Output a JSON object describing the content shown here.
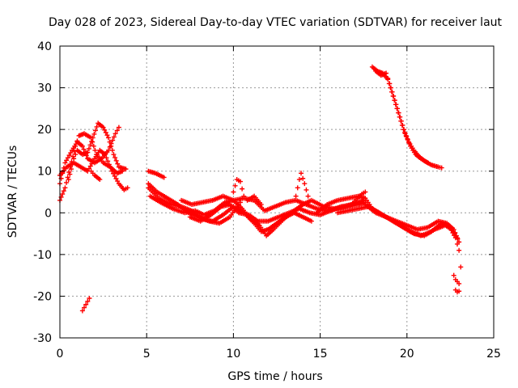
{
  "chart_data": {
    "type": "scatter",
    "title": "Day 028 of 2023, Sidereal Day-to-day VTEC variation (SDTVAR) for receiver laut",
    "xlabel": "GPS time / hours",
    "ylabel": "SDTVAR / TECUs",
    "xlim": [
      0,
      25
    ],
    "ylim": [
      -30,
      40
    ],
    "xticks": [
      "0",
      "5",
      "10",
      "15",
      "20",
      "25"
    ],
    "yticks": [
      "-30",
      "-20",
      "-10",
      "0",
      "10",
      "20",
      "30",
      "40"
    ],
    "grid": true,
    "marker": "+",
    "series": [
      {
        "name": "SDTVAR",
        "color": "#ff0000",
        "tracks": [
          [
            [
              0,
              3
            ],
            [
              0.3,
              6
            ],
            [
              0.6,
              11
            ],
            [
              0.9,
              16
            ],
            [
              1.1,
              18.5
            ],
            [
              1.4,
              19
            ],
            [
              1.8,
              18
            ],
            [
              2.1,
              14
            ],
            [
              2.5,
              12
            ],
            [
              2.9,
              11
            ],
            [
              3.3,
              9.5
            ],
            [
              3.6,
              10
            ]
          ],
          [
            [
              0,
              7
            ],
            [
              0.3,
              12
            ],
            [
              0.7,
              15
            ],
            [
              1.0,
              17
            ],
            [
              1.3,
              16
            ],
            [
              1.6,
              13
            ],
            [
              2.0,
              12
            ],
            [
              2.4,
              13
            ],
            [
              2.8,
              15
            ],
            [
              3.2,
              19
            ],
            [
              3.4,
              20.5
            ]
          ],
          [
            [
              0,
              9
            ],
            [
              0.4,
              11
            ],
            [
              0.8,
              12
            ],
            [
              1.2,
              11
            ],
            [
              1.6,
              10
            ],
            [
              2.0,
              13
            ],
            [
              2.3,
              15
            ],
            [
              2.6,
              14
            ],
            [
              3.0,
              10
            ],
            [
              3.4,
              7
            ],
            [
              3.7,
              5.5
            ],
            [
              3.9,
              6
            ]
          ],
          [
            [
              0.5,
              8
            ],
            [
              0.8,
              13
            ],
            [
              1.0,
              15
            ],
            [
              1.3,
              14
            ],
            [
              1.6,
              14.5
            ],
            [
              1.9,
              18
            ],
            [
              2.2,
              21.5
            ],
            [
              2.5,
              20.5
            ],
            [
              2.8,
              18
            ],
            [
              3.1,
              14
            ],
            [
              3.4,
              11
            ],
            [
              3.8,
              10.5
            ]
          ],
          [
            [
              1.8,
              10
            ],
            [
              2.0,
              9
            ],
            [
              2.3,
              8
            ]
          ],
          [
            [
              1.3,
              -23.5
            ],
            [
              1.5,
              -22
            ],
            [
              1.7,
              -20.5
            ]
          ],
          [
            [
              5.1,
              10
            ],
            [
              5.5,
              9.5
            ],
            [
              6.0,
              8.5
            ]
          ],
          [
            [
              5.1,
              7
            ],
            [
              5.6,
              5
            ],
            [
              6.2,
              3.5
            ],
            [
              6.8,
              2
            ],
            [
              7.4,
              0
            ],
            [
              8.0,
              -1
            ],
            [
              8.6,
              -2
            ],
            [
              9.2,
              -2.5
            ],
            [
              9.8,
              -1
            ],
            [
              10.2,
              1.5
            ],
            [
              10.4,
              2.5
            ]
          ],
          [
            [
              5.1,
              6
            ],
            [
              5.7,
              3.5
            ],
            [
              6.4,
              2
            ],
            [
              7.0,
              1.5
            ],
            [
              7.6,
              0.5
            ],
            [
              8.2,
              -1.5
            ],
            [
              8.8,
              -2
            ],
            [
              9.4,
              -0.5
            ],
            [
              10.0,
              1.5
            ],
            [
              10.6,
              0
            ],
            [
              11.2,
              -2.5
            ],
            [
              11.6,
              -4.5
            ],
            [
              12.0,
              -4
            ],
            [
              12.5,
              -2.5
            ],
            [
              13.0,
              -1
            ],
            [
              13.5,
              0
            ],
            [
              14.0,
              -1
            ],
            [
              14.5,
              -2
            ]
          ],
          [
            [
              5.2,
              4
            ],
            [
              5.8,
              2.5
            ],
            [
              6.5,
              1
            ],
            [
              7.2,
              0
            ],
            [
              7.8,
              0.5
            ],
            [
              8.3,
              -0.5
            ],
            [
              8.9,
              0.5
            ],
            [
              9.5,
              2.5
            ],
            [
              10.0,
              3
            ],
            [
              10.5,
              1
            ],
            [
              11.0,
              -1.5
            ],
            [
              11.5,
              -3
            ],
            [
              11.9,
              -5.5
            ],
            [
              12.3,
              -4
            ],
            [
              12.9,
              -1.5
            ],
            [
              13.5,
              0.5
            ],
            [
              14.0,
              2
            ],
            [
              14.5,
              3
            ],
            [
              15.2,
              1.5
            ],
            [
              15.8,
              1
            ],
            [
              16.5,
              1.5
            ],
            [
              17.2,
              2.5
            ],
            [
              17.5,
              3
            ]
          ],
          [
            [
              7.0,
              3
            ],
            [
              7.6,
              2
            ],
            [
              8.2,
              2.5
            ],
            [
              8.8,
              3
            ],
            [
              9.4,
              4
            ],
            [
              10.0,
              3
            ],
            [
              10.6,
              3.5
            ],
            [
              11.2,
              3
            ],
            [
              11.8,
              0.5
            ],
            [
              12.4,
              1.5
            ],
            [
              13.0,
              2.5
            ],
            [
              13.6,
              3
            ],
            [
              14.2,
              2
            ],
            [
              14.8,
              1
            ],
            [
              15.4,
              0.5
            ],
            [
              16.0,
              1
            ],
            [
              16.6,
              1.5
            ],
            [
              17.2,
              2
            ],
            [
              17.6,
              2.5
            ]
          ],
          [
            [
              7.5,
              -1
            ],
            [
              8.1,
              -2
            ],
            [
              8.7,
              -0.5
            ],
            [
              9.3,
              1.5
            ],
            [
              9.8,
              2
            ],
            [
              10.3,
              0
            ],
            [
              10.9,
              -0.5
            ],
            [
              11.4,
              -2
            ],
            [
              12.0,
              -2
            ],
            [
              12.6,
              -1
            ],
            [
              13.2,
              0
            ],
            [
              13.8,
              1
            ],
            [
              14.4,
              0
            ],
            [
              15.0,
              -0.5
            ],
            [
              15.6,
              0.5
            ],
            [
              16.2,
              1.5
            ],
            [
              16.8,
              2
            ],
            [
              17.4,
              4.5
            ],
            [
              17.6,
              5
            ]
          ],
          [
            [
              10.0,
              5
            ],
            [
              10.2,
              8
            ],
            [
              10.4,
              7.5
            ],
            [
              10.6,
              4
            ]
          ],
          [
            [
              10.8,
              3
            ],
            [
              11.2,
              4
            ],
            [
              11.6,
              2
            ]
          ],
          [
            [
              13.6,
              4
            ],
            [
              13.8,
              8
            ],
            [
              13.9,
              9.5
            ],
            [
              14.1,
              7
            ],
            [
              14.3,
              4
            ]
          ],
          [
            [
              14.8,
              0
            ],
            [
              15.4,
              2
            ],
            [
              16.0,
              3
            ],
            [
              16.6,
              3.5
            ],
            [
              17.2,
              4
            ],
            [
              17.6,
              3.5
            ],
            [
              18.0,
              1
            ],
            [
              18.6,
              -0.5
            ],
            [
              19.2,
              -2
            ],
            [
              19.8,
              -3.5
            ],
            [
              20.4,
              -5
            ],
            [
              21.0,
              -5.5
            ],
            [
              21.6,
              -4
            ],
            [
              22.2,
              -3
            ],
            [
              22.6,
              -4
            ],
            [
              22.9,
              -6
            ]
          ],
          [
            [
              16.0,
              0
            ],
            [
              16.6,
              0.5
            ],
            [
              17.2,
              1
            ],
            [
              17.8,
              1.5
            ],
            [
              18.4,
              0
            ],
            [
              19.0,
              -1.5
            ],
            [
              19.6,
              -3
            ],
            [
              20.2,
              -4.5
            ],
            [
              20.8,
              -5.5
            ],
            [
              21.4,
              -4.5
            ],
            [
              22.0,
              -2.5
            ],
            [
              22.4,
              -3
            ],
            [
              22.8,
              -6
            ],
            [
              23.0,
              -9
            ],
            [
              23.1,
              -13
            ]
          ],
          [
            [
              17.6,
              2
            ],
            [
              18.2,
              0
            ],
            [
              18.8,
              -1
            ],
            [
              19.4,
              -2
            ],
            [
              20.0,
              -3
            ],
            [
              20.6,
              -4
            ],
            [
              21.2,
              -3.5
            ],
            [
              21.8,
              -2
            ],
            [
              22.3,
              -2.5
            ],
            [
              22.7,
              -4
            ],
            [
              23.0,
              -7
            ]
          ],
          [
            [
              18.0,
              35
            ],
            [
              18.3,
              34
            ],
            [
              18.6,
              33.5
            ],
            [
              18.9,
              32
            ],
            [
              19.2,
              28
            ],
            [
              19.5,
              24
            ],
            [
              19.8,
              20
            ],
            [
              20.1,
              17
            ],
            [
              20.4,
              15
            ],
            [
              20.7,
              13.5
            ],
            [
              21.0,
              12.5
            ],
            [
              21.4,
              11.5
            ],
            [
              21.8,
              11
            ],
            [
              22.0,
              10.8
            ]
          ],
          [
            [
              18.2,
              34
            ],
            [
              18.5,
              33
            ],
            [
              18.8,
              33.5
            ],
            [
              19.0,
              31
            ],
            [
              19.3,
              27
            ],
            [
              19.6,
              23
            ],
            [
              19.9,
              19
            ],
            [
              20.2,
              16
            ],
            [
              20.5,
              14
            ],
            [
              20.8,
              13
            ],
            [
              21.2,
              12
            ]
          ],
          [
            [
              22.7,
              -15
            ],
            [
              22.8,
              -16
            ],
            [
              23.0,
              -17
            ]
          ],
          [
            [
              22.8,
              -18.5
            ],
            [
              22.9,
              -19
            ],
            [
              23.0,
              -18.8
            ]
          ]
        ]
      }
    ]
  }
}
